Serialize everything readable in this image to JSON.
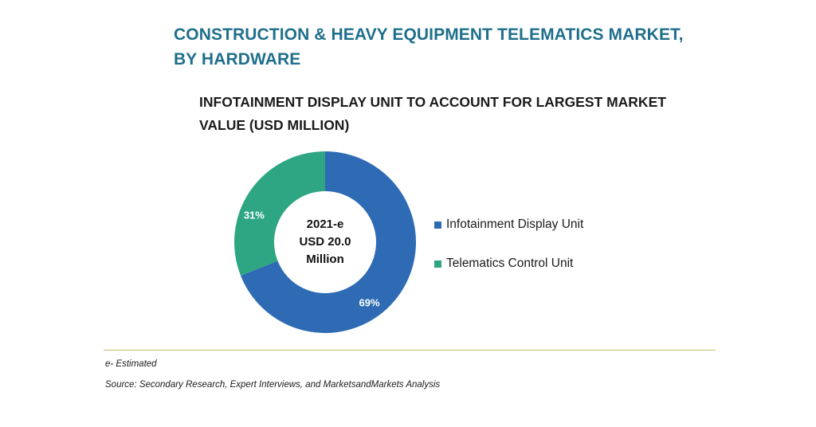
{
  "header": {
    "title_line1": "CONSTRUCTION & HEAVY EQUIPMENT TELEMATICS MARKET,",
    "title_line2": "BY HARDWARE"
  },
  "chart_data": {
    "type": "pie",
    "title": "INFOTAINMENT DISPLAY UNIT TO ACCOUNT FOR LARGEST MARKET VALUE (USD MILLION)",
    "title_line1": "INFOTAINMENT DISPLAY UNIT TO ACCOUNT FOR LARGEST MARKET",
    "title_line2": "VALUE (USD MILLION)",
    "donut": true,
    "center_label": [
      "2021-e",
      "USD 20.0",
      "Million"
    ],
    "categories": [
      "Infotainment Display Unit",
      "Telematics Control Unit"
    ],
    "values": [
      69,
      31
    ],
    "data_labels": [
      "69%",
      "31%"
    ],
    "colors": [
      "#2e6bb4",
      "#2ea683"
    ],
    "legend_position": "right"
  },
  "footer": {
    "estimated_note": "e- Estimated",
    "source": "Source: Secondary Research, Expert Interviews, and MarketsandMarkets Analysis"
  }
}
